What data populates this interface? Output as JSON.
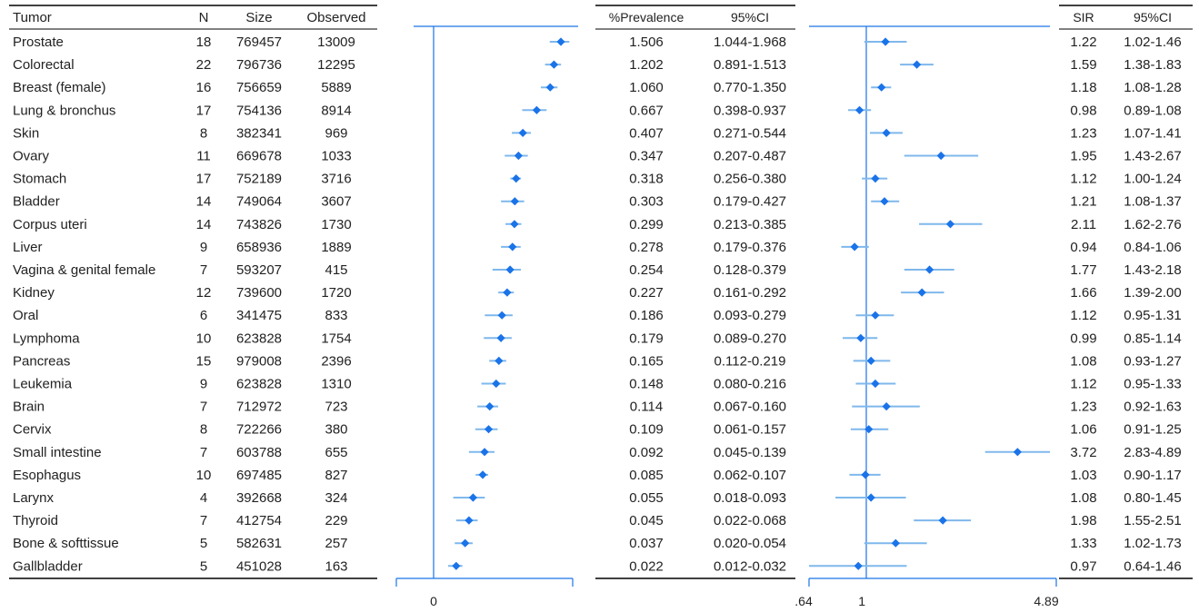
{
  "colors": {
    "marker": "#1a73e8",
    "ci_line": "#7fb8ec",
    "axis": "#1a73e8",
    "rule": "#000000",
    "text": "#222222"
  },
  "headers": {
    "tumor": "Tumor",
    "n": "N",
    "size": "Size",
    "observed": "Observed",
    "prevalence": "%Prevalence",
    "prevalence_ci": "95%CI",
    "sir": "SIR",
    "sir_ci": "95%CI"
  },
  "rows": [
    {
      "tumor": "Prostate",
      "n": "18",
      "size": "769457",
      "observed": "13009",
      "prev": "1.506",
      "prev_ci": "1.044-1.968",
      "sir": "1.22",
      "sir_ci": "1.02-1.46"
    },
    {
      "tumor": "Colorectal",
      "n": "22",
      "size": "796736",
      "observed": "12295",
      "prev": "1.202",
      "prev_ci": "0.891-1.513",
      "sir": "1.59",
      "sir_ci": "1.38-1.83"
    },
    {
      "tumor": "Breast (female)",
      "n": "16",
      "size": "756659",
      "observed": "5889",
      "prev": "1.060",
      "prev_ci": "0.770-1.350",
      "sir": "1.18",
      "sir_ci": "1.08-1.28"
    },
    {
      "tumor": "Lung & bronchus",
      "n": "17",
      "size": "754136",
      "observed": "8914",
      "prev": "0.667",
      "prev_ci": "0.398-0.937",
      "sir": "0.98",
      "sir_ci": "0.89-1.08"
    },
    {
      "tumor": "Skin",
      "n": "8",
      "size": "382341",
      "observed": "969",
      "prev": "0.407",
      "prev_ci": "0.271-0.544",
      "sir": "1.23",
      "sir_ci": "1.07-1.41"
    },
    {
      "tumor": "Ovary",
      "n": "11",
      "size": "669678",
      "observed": "1033",
      "prev": "0.347",
      "prev_ci": "0.207-0.487",
      "sir": "1.95",
      "sir_ci": "1.43-2.67"
    },
    {
      "tumor": "Stomach",
      "n": "17",
      "size": "752189",
      "observed": "3716",
      "prev": "0.318",
      "prev_ci": "0.256-0.380",
      "sir": "1.12",
      "sir_ci": "1.00-1.24"
    },
    {
      "tumor": "Bladder",
      "n": "14",
      "size": "749064",
      "observed": "3607",
      "prev": "0.303",
      "prev_ci": "0.179-0.427",
      "sir": "1.21",
      "sir_ci": "1.08-1.37"
    },
    {
      "tumor": "Corpus uteri",
      "n": "14",
      "size": "743826",
      "observed": "1730",
      "prev": "0.299",
      "prev_ci": "0.213-0.385",
      "sir": "2.11",
      "sir_ci": "1.62-2.76"
    },
    {
      "tumor": "Liver",
      "n": "9",
      "size": "658936",
      "observed": "1889",
      "prev": "0.278",
      "prev_ci": "0.179-0.376",
      "sir": "0.94",
      "sir_ci": "0.84-1.06"
    },
    {
      "tumor": "Vagina & genital female",
      "n": "7",
      "size": "593207",
      "observed": "415",
      "prev": "0.254",
      "prev_ci": "0.128-0.379",
      "sir": "1.77",
      "sir_ci": "1.43-2.18"
    },
    {
      "tumor": "Kidney",
      "n": "12",
      "size": "739600",
      "observed": "1720",
      "prev": "0.227",
      "prev_ci": "0.161-0.292",
      "sir": "1.66",
      "sir_ci": "1.39-2.00"
    },
    {
      "tumor": "Oral",
      "n": "6",
      "size": "341475",
      "observed": "833",
      "prev": "0.186",
      "prev_ci": "0.093-0.279",
      "sir": "1.12",
      "sir_ci": "0.95-1.31"
    },
    {
      "tumor": "Lymphoma",
      "n": "10",
      "size": "623828",
      "observed": "1754",
      "prev": "0.179",
      "prev_ci": "0.089-0.270",
      "sir": "0.99",
      "sir_ci": "0.85-1.14"
    },
    {
      "tumor": "Pancreas",
      "n": "15",
      "size": "979008",
      "observed": "2396",
      "prev": "0.165",
      "prev_ci": "0.112-0.219",
      "sir": "1.08",
      "sir_ci": "0.93-1.27"
    },
    {
      "tumor": "Leukemia",
      "n": "9",
      "size": "623828",
      "observed": "1310",
      "prev": "0.148",
      "prev_ci": "0.080-0.216",
      "sir": "1.12",
      "sir_ci": "0.95-1.33"
    },
    {
      "tumor": "Brain",
      "n": "7",
      "size": "712972",
      "observed": "723",
      "prev": "0.114",
      "prev_ci": "0.067-0.160",
      "sir": "1.23",
      "sir_ci": "0.92-1.63"
    },
    {
      "tumor": "Cervix",
      "n": "8",
      "size": "722266",
      "observed": "380",
      "prev": "0.109",
      "prev_ci": "0.061-0.157",
      "sir": "1.06",
      "sir_ci": "0.91-1.25"
    },
    {
      "tumor": "Small intestine",
      "n": "7",
      "size": "603788",
      "observed": "655",
      "prev": "0.092",
      "prev_ci": "0.045-0.139",
      "sir": "3.72",
      "sir_ci": "2.83-4.89"
    },
    {
      "tumor": "Esophagus",
      "n": "10",
      "size": "697485",
      "observed": "827",
      "prev": "0.085",
      "prev_ci": "0.062-0.107",
      "sir": "1.03",
      "sir_ci": "0.90-1.17"
    },
    {
      "tumor": "Larynx",
      "n": "4",
      "size": "392668",
      "observed": "324",
      "prev": "0.055",
      "prev_ci": "0.018-0.093",
      "sir": "1.08",
      "sir_ci": "0.80-1.45"
    },
    {
      "tumor": "Thyroid",
      "n": "7",
      "size": "412754",
      "observed": "229",
      "prev": "0.045",
      "prev_ci": "0.022-0.068",
      "sir": "1.98",
      "sir_ci": "1.55-2.51"
    },
    {
      "tumor": "Bone & softtissue",
      "n": "5",
      "size": "582631",
      "observed": "257",
      "prev": "0.037",
      "prev_ci": "0.020-0.054",
      "sir": "1.33",
      "sir_ci": "1.02-1.73"
    },
    {
      "tumor": "Gallbladder",
      "n": "5",
      "size": "451028",
      "observed": "163",
      "prev": "0.022",
      "prev_ci": "0.012-0.032",
      "sir": "0.97",
      "sir_ci": "0.64-1.46"
    }
  ],
  "chart_data": [
    {
      "type": "scatter",
      "title": "",
      "xlabel": "",
      "ylabel": "",
      "x_ticks": [
        "0"
      ],
      "xlim": [
        0,
        2.0
      ],
      "scale": "log",
      "categories": [
        "Prostate",
        "Colorectal",
        "Breast (female)",
        "Lung & bronchus",
        "Skin",
        "Ovary",
        "Stomach",
        "Bladder",
        "Corpus uteri",
        "Liver",
        "Vagina & genital female",
        "Kidney",
        "Oral",
        "Lymphoma",
        "Pancreas",
        "Leukemia",
        "Brain",
        "Cervix",
        "Small intestine",
        "Esophagus",
        "Larynx",
        "Thyroid",
        "Bone & softtissue",
        "Gallbladder"
      ],
      "values": [
        1.506,
        1.202,
        1.06,
        0.667,
        0.407,
        0.347,
        0.318,
        0.303,
        0.299,
        0.278,
        0.254,
        0.227,
        0.186,
        0.179,
        0.165,
        0.148,
        0.114,
        0.109,
        0.092,
        0.085,
        0.055,
        0.045,
        0.037,
        0.022
      ],
      "lower": [
        1.044,
        0.891,
        0.77,
        0.398,
        0.271,
        0.207,
        0.256,
        0.179,
        0.213,
        0.179,
        0.128,
        0.161,
        0.093,
        0.089,
        0.112,
        0.08,
        0.067,
        0.061,
        0.045,
        0.062,
        0.018,
        0.022,
        0.02,
        0.012
      ],
      "upper": [
        1.968,
        1.513,
        1.35,
        0.937,
        0.544,
        0.487,
        0.38,
        0.427,
        0.385,
        0.376,
        0.379,
        0.292,
        0.279,
        0.27,
        0.219,
        0.216,
        0.16,
        0.157,
        0.139,
        0.107,
        0.093,
        0.068,
        0.054,
        0.032
      ],
      "grid": false
    },
    {
      "type": "scatter",
      "title": "",
      "xlabel": "",
      "ylabel": "",
      "x_ticks": [
        ".64",
        "1",
        "4.89"
      ],
      "xlim": [
        0.64,
        4.89
      ],
      "scale": "log",
      "reference_line": 1,
      "categories": [
        "Prostate",
        "Colorectal",
        "Breast (female)",
        "Lung & bronchus",
        "Skin",
        "Ovary",
        "Stomach",
        "Bladder",
        "Corpus uteri",
        "Liver",
        "Vagina & genital female",
        "Kidney",
        "Oral",
        "Lymphoma",
        "Pancreas",
        "Leukemia",
        "Brain",
        "Cervix",
        "Small intestine",
        "Esophagus",
        "Larynx",
        "Thyroid",
        "Bone & softtissue",
        "Gallbladder"
      ],
      "values": [
        1.22,
        1.59,
        1.18,
        0.98,
        1.23,
        1.95,
        1.12,
        1.21,
        2.11,
        0.94,
        1.77,
        1.66,
        1.12,
        0.99,
        1.08,
        1.12,
        1.23,
        1.06,
        3.72,
        1.03,
        1.08,
        1.98,
        1.33,
        0.97
      ],
      "lower": [
        1.02,
        1.38,
        1.08,
        0.89,
        1.07,
        1.43,
        1.0,
        1.08,
        1.62,
        0.84,
        1.43,
        1.39,
        0.95,
        0.85,
        0.93,
        0.95,
        0.92,
        0.91,
        2.83,
        0.9,
        0.8,
        1.55,
        1.02,
        0.64
      ],
      "upper": [
        1.46,
        1.83,
        1.28,
        1.08,
        1.41,
        2.67,
        1.24,
        1.37,
        2.76,
        1.06,
        2.18,
        2.0,
        1.31,
        1.14,
        1.27,
        1.33,
        1.63,
        1.25,
        4.89,
        1.17,
        1.45,
        2.51,
        1.73,
        1.46
      ],
      "grid": false
    }
  ]
}
